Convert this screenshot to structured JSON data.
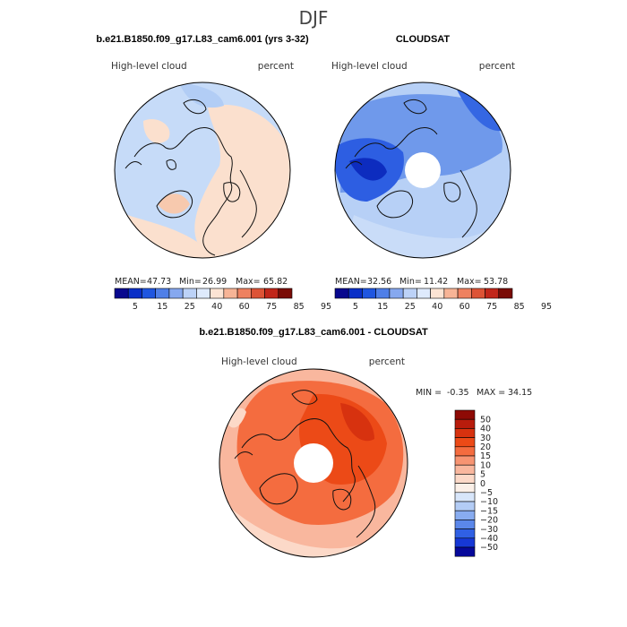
{
  "page": {
    "season_title": "DJF"
  },
  "panels": [
    {
      "title": "b.e21.B1850.f09_g17.L83_cam6.001 (yrs 3-32)",
      "left_label": "High-level cloud",
      "right_label": "percent",
      "stats": {
        "mean_label": "MEAN=",
        "mean": "47.73",
        "min_label": "Min=",
        "min": "26.99",
        "max_label": "Max=",
        "max": "65.82"
      }
    },
    {
      "title": "CLOUDSAT",
      "left_label": "High-level cloud",
      "right_label": "percent",
      "stats": {
        "mean_label": "MEAN=",
        "mean": "32.56",
        "min_label": "Min=",
        "min": "11.42",
        "max_label": "Max=",
        "max": "53.78"
      }
    },
    {
      "title": "b.e21.B1850.f09_g17.L83_cam6.001 - CLOUDSAT",
      "left_label": "High-level cloud",
      "right_label": "percent",
      "stats": {
        "min_label": "MIN =",
        "min": "-0.35",
        "max_label": "MAX =",
        "max": "34.15"
      }
    }
  ],
  "chart_data": [
    {
      "type": "heatmap",
      "projection": "north-polar-stereographic",
      "title": "b.e21.B1850.f09_g17.L83_cam6.001 (yrs 3-32)",
      "variable": "High-level cloud",
      "units": "percent",
      "mean": 47.73,
      "min": 26.99,
      "max": 65.82,
      "colorbar": {
        "orientation": "horizontal",
        "levels": [
          5,
          15,
          25,
          40,
          60,
          75,
          85,
          95
        ],
        "tick_labels": [
          "5",
          "15",
          "25",
          "40",
          "60",
          "75",
          "85",
          "95"
        ],
        "colors": [
          "#08088e",
          "#0a2fc7",
          "#1f56e0",
          "#4f7fe8",
          "#86a8ef",
          "#bcd2f7",
          "#deeafc",
          "#fce4d4",
          "#f7b496",
          "#ee8160",
          "#dd5336",
          "#c1261a",
          "#7a0c06"
        ]
      }
    },
    {
      "type": "heatmap",
      "projection": "north-polar-stereographic",
      "title": "CLOUDSAT",
      "variable": "High-level cloud",
      "units": "percent",
      "mean": 32.56,
      "min": 11.42,
      "max": 53.78,
      "colorbar": {
        "orientation": "horizontal",
        "levels": [
          5,
          15,
          25,
          40,
          60,
          75,
          85,
          95
        ],
        "tick_labels": [
          "5",
          "15",
          "25",
          "40",
          "60",
          "75",
          "85",
          "95"
        ],
        "colors": [
          "#08088e",
          "#0a2fc7",
          "#1f56e0",
          "#4f7fe8",
          "#86a8ef",
          "#bcd2f7",
          "#deeafc",
          "#fce4d4",
          "#f7b496",
          "#ee8160",
          "#dd5336",
          "#c1261a",
          "#7a0c06"
        ]
      }
    },
    {
      "type": "heatmap",
      "projection": "north-polar-stereographic",
      "title": "b.e21.B1850.f09_g17.L83_cam6.001 - CLOUDSAT",
      "variable": "High-level cloud",
      "units": "percent",
      "min": -0.35,
      "max": 34.15,
      "colorbar": {
        "orientation": "vertical",
        "levels": [
          50,
          40,
          30,
          20,
          15,
          10,
          5,
          0,
          -5,
          -10,
          -15,
          -20,
          -30,
          -40,
          -50
        ],
        "tick_labels": [
          "50",
          "40",
          "30",
          "20",
          "15",
          "10",
          "5",
          "0",
          "−5",
          "−10",
          "−15",
          "−20",
          "−30",
          "−40",
          "−50"
        ],
        "colors": [
          "#8e0a05",
          "#b81c0c",
          "#d7320f",
          "#ec4a17",
          "#f46c3f",
          "#f79472",
          "#f9b79e",
          "#fcd9c8",
          "#fbf0e8",
          "#d8e6fa",
          "#b3ccf5",
          "#88acf0",
          "#5b87ea",
          "#3060e4",
          "#1638d6",
          "#06089a"
        ]
      }
    }
  ]
}
